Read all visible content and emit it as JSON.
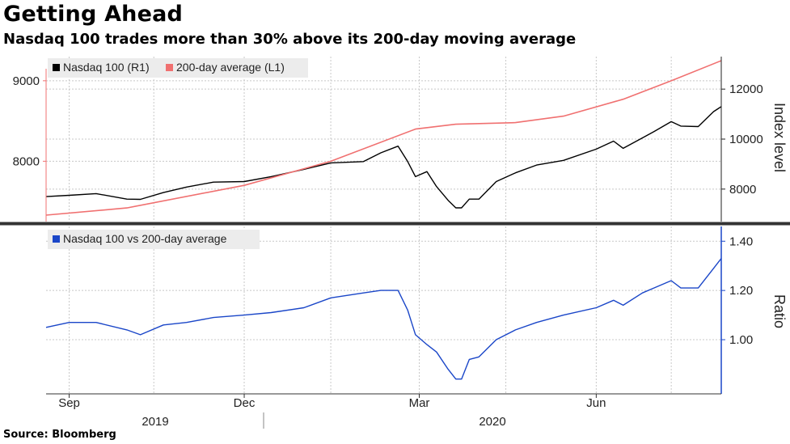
{
  "title": "Getting Ahead",
  "subtitle": "Nasdaq 100 trades more than 30% above its 200-day moving average",
  "source": "Source: Bloomberg",
  "colors": {
    "nasdaq": "#000000",
    "avg200": "#f07070",
    "ratio": "#1a46c8",
    "right_axis_top": "#222222",
    "right_axis_bottom": "#1a46c8",
    "grid": "#c8c8c8",
    "divider": "#333333"
  },
  "chart_data": [
    {
      "type": "line",
      "title": "Index level",
      "x_axis": {
        "type": "time",
        "range": [
          "2019-08-20",
          "2020-08-05"
        ],
        "tick_labels": [
          "Sep",
          "Dec",
          "Mar",
          "Jun"
        ],
        "tick_dates": [
          "2019-09-01",
          "2019-12-01",
          "2020-03-01",
          "2020-06-01"
        ],
        "year_labels": [
          "2019",
          "2020"
        ]
      },
      "left_axis": {
        "label": "",
        "range": [
          7250,
          9300
        ],
        "ticks": [
          8000,
          9000
        ]
      },
      "right_axis": {
        "label": "Index level",
        "range": [
          6700,
          13300
        ],
        "ticks": [
          8000,
          10000,
          12000
        ]
      },
      "legend": [
        "Nasdaq 100 (R1)",
        "200-day average (L1)"
      ],
      "legend_position": "top-left",
      "series": [
        {
          "name": "Nasdaq 100 (R1)",
          "axis": "right",
          "x": [
            "2019-08-20",
            "2019-09-01",
            "2019-09-15",
            "2019-10-01",
            "2019-10-08",
            "2019-10-20",
            "2019-11-01",
            "2019-11-15",
            "2019-12-01",
            "2019-12-15",
            "2020-01-01",
            "2020-01-15",
            "2020-02-01",
            "2020-02-10",
            "2020-02-19",
            "2020-02-24",
            "2020-02-28",
            "2020-03-05",
            "2020-03-10",
            "2020-03-16",
            "2020-03-20",
            "2020-03-23",
            "2020-03-27",
            "2020-04-01",
            "2020-04-10",
            "2020-04-20",
            "2020-05-01",
            "2020-05-15",
            "2020-06-01",
            "2020-06-10",
            "2020-06-15",
            "2020-06-25",
            "2020-07-01",
            "2020-07-10",
            "2020-07-15",
            "2020-07-24",
            "2020-08-01",
            "2020-08-05"
          ],
          "y": [
            7700,
            7750,
            7820,
            7600,
            7590,
            7860,
            8080,
            8280,
            8300,
            8500,
            8790,
            9050,
            9100,
            9450,
            9720,
            9100,
            8500,
            8700,
            8100,
            7550,
            7250,
            7250,
            7600,
            7600,
            8300,
            8650,
            8960,
            9150,
            9600,
            9920,
            9630,
            10050,
            10300,
            10700,
            10520,
            10500,
            11100,
            11300
          ]
        }
      ]
    },
    {
      "type": "line",
      "title": "Ratio",
      "x_axis": {
        "type": "time",
        "range": [
          "2019-08-20",
          "2020-08-05"
        ]
      },
      "right_axis": {
        "label": "Ratio",
        "range": [
          0.78,
          1.46
        ],
        "ticks": [
          1.0,
          1.2,
          1.4
        ],
        "tick_labels": [
          "1.00",
          "1.20",
          "1.40"
        ]
      },
      "legend": [
        "Nasdaq 100 vs 200-day average"
      ],
      "legend_position": "top-left",
      "series": [
        {
          "name": "Nasdaq 100 vs 200-day average",
          "axis": "right",
          "x": [
            "2019-08-20",
            "2019-09-01",
            "2019-09-15",
            "2019-10-01",
            "2019-10-08",
            "2019-10-20",
            "2019-11-01",
            "2019-11-15",
            "2019-12-01",
            "2019-12-15",
            "2020-01-01",
            "2020-01-15",
            "2020-02-01",
            "2020-02-10",
            "2020-02-19",
            "2020-02-24",
            "2020-02-28",
            "2020-03-05",
            "2020-03-10",
            "2020-03-16",
            "2020-03-20",
            "2020-03-23",
            "2020-03-27",
            "2020-04-01",
            "2020-04-10",
            "2020-04-20",
            "2020-05-01",
            "2020-05-15",
            "2020-06-01",
            "2020-06-10",
            "2020-06-15",
            "2020-06-25",
            "2020-07-01",
            "2020-07-10",
            "2020-07-15",
            "2020-07-24",
            "2020-08-01",
            "2020-08-05"
          ],
          "y": [
            1.05,
            1.07,
            1.07,
            1.04,
            1.02,
            1.06,
            1.07,
            1.09,
            1.1,
            1.11,
            1.13,
            1.17,
            1.19,
            1.2,
            1.2,
            1.12,
            1.02,
            0.98,
            0.95,
            0.88,
            0.84,
            0.84,
            0.92,
            0.93,
            1.0,
            1.04,
            1.07,
            1.1,
            1.13,
            1.16,
            1.14,
            1.19,
            1.21,
            1.24,
            1.21,
            1.21,
            1.29,
            1.33
          ]
        }
      ]
    }
  ]
}
